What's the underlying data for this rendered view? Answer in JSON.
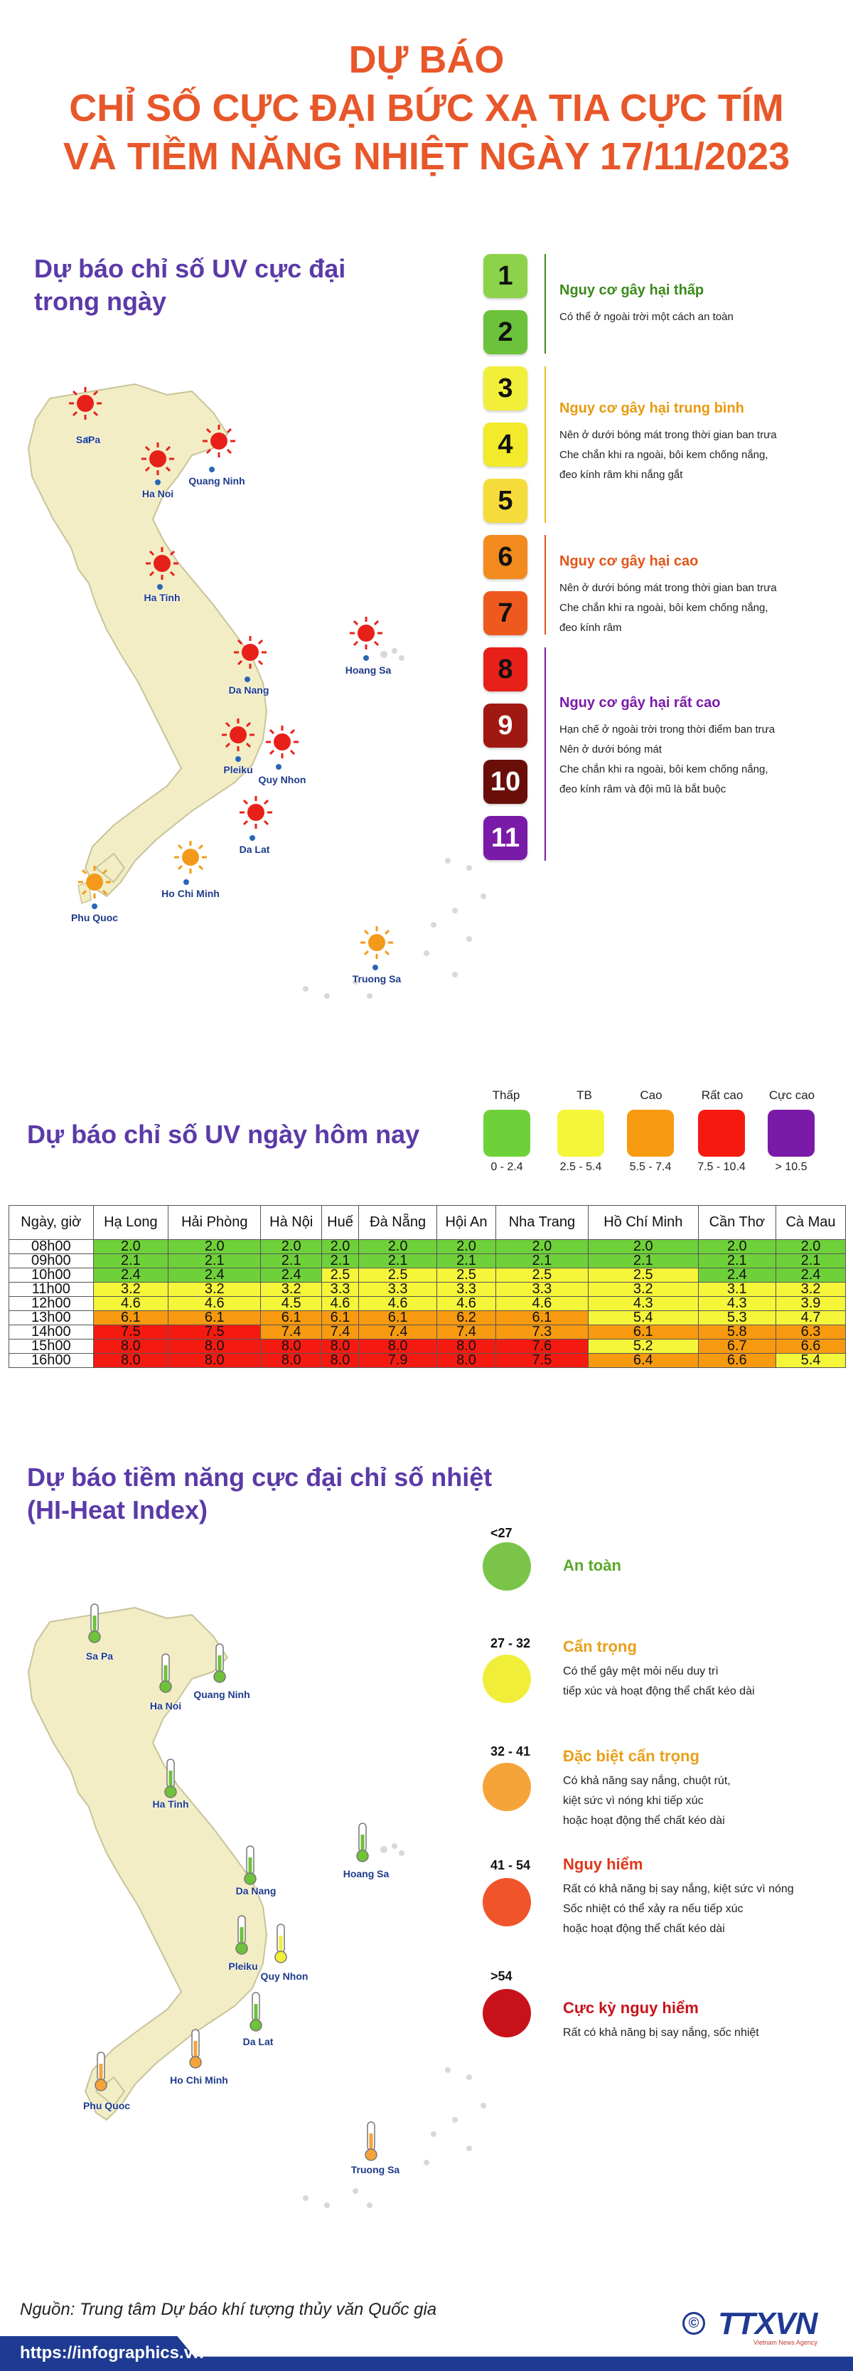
{
  "title": {
    "line1": "DỰ BÁO",
    "line2": "CHỈ SỐ CỰC ĐẠI BỨC XẠ TIA CỰC TÍM",
    "line3": "VÀ TIỀM NĂNG NHIỆT NGÀY 17/11/2023"
  },
  "uv_map": {
    "heading_line1": "Dự báo chỉ số UV cực đại",
    "heading_line2": "trong ngày",
    "cities": [
      "SaPa",
      "Ha Noi",
      "Quang Ninh",
      "Ha Tinh",
      "Hoang Sa",
      "Da Nang",
      "Pleiku",
      "Quy Nhon",
      "Da Lat",
      "Ho Chi Minh",
      "Phu Quoc",
      "Truong Sa"
    ]
  },
  "uv_scale": {
    "levels": [
      "1",
      "2",
      "3",
      "4",
      "5",
      "6",
      "7",
      "8",
      "9",
      "10",
      "11"
    ],
    "level_colors": [
      "#8cd24a",
      "#6cc23a",
      "#f2ef3a",
      "#f2ea2a",
      "#f5dc3a",
      "#f28a1e",
      "#ee5a1e",
      "#e8201a",
      "#a01812",
      "#6a0e0a",
      "#7a1aa8"
    ],
    "groups": [
      {
        "title": "Nguy cơ gây hại thấp",
        "color": "#3b8a1a",
        "lines": [
          "Có thể ở ngoài trời một cách an toàn"
        ]
      },
      {
        "title": "Nguy cơ gây hại trung bình",
        "color": "#e89a10",
        "lines": [
          "Nên ở dưới bóng mát trong thời gian ban trưa",
          "Che chắn khi ra ngoài, bôi kem chống nắng,",
          "đeo kính râm khi nắng gắt"
        ]
      },
      {
        "title": "Nguy cơ gây hại cao",
        "color": "#e0561a",
        "lines": [
          "Nên ở dưới bóng mát trong thời gian ban trưa",
          "Che chắn khi ra ngoài, bôi kem chống nắng,",
          "đeo kính râm"
        ]
      },
      {
        "title": "Nguy cơ gây hại rất cao",
        "color": "#7a1aa8",
        "lines": [
          "Hạn chế ở ngoài trời trong thời điểm ban trưa",
          "Nên ở dưới bóng mát",
          "Che chắn khi ra ngoài, bôi kem chống nắng,",
          "đeo kính râm và đội mũ là bắt buộc"
        ]
      }
    ]
  },
  "uv_today": {
    "heading": "Dự báo chỉ số UV ngày hôm nay",
    "legend": [
      {
        "label": "Thấp",
        "range": "0 - 2.4",
        "color": "#6fd13a"
      },
      {
        "label": "TB",
        "range": "2.5 - 5.4",
        "color": "#f5f53a"
      },
      {
        "label": "Cao",
        "range": "5.5 - 7.4",
        "color": "#f79a10"
      },
      {
        "label": "Rất cao",
        "range": "7.5 - 10.4",
        "color": "#f51a10"
      },
      {
        "label": "Cực cao",
        "range": "> 10.5",
        "color": "#7a1aa8"
      }
    ]
  },
  "uv_table": {
    "headers": [
      "Ngày, giờ",
      "Hạ Long",
      "Hải Phòng",
      "Hà Nội",
      "Huế",
      "Đà Nẵng",
      "Hội An",
      "Nha Trang",
      "Hồ Chí Minh",
      "Cần Thơ",
      "Cà Mau"
    ],
    "rows": [
      {
        "time": "08h00",
        "values": [
          "2.0",
          "2.0",
          "2.0",
          "2.0",
          "2.0",
          "2.0",
          "2.0",
          "2.0",
          "2.0",
          "2.0"
        ]
      },
      {
        "time": "09h00",
        "values": [
          "2.1",
          "2.1",
          "2.1",
          "2.1",
          "2.1",
          "2.1",
          "2.1",
          "2.1",
          "2.1",
          "2.1"
        ]
      },
      {
        "time": "10h00",
        "values": [
          "2.4",
          "2.4",
          "2.4",
          "2.5",
          "2.5",
          "2.5",
          "2.5",
          "2.5",
          "2.4",
          "2.4"
        ]
      },
      {
        "time": "11h00",
        "values": [
          "3.2",
          "3.2",
          "3.2",
          "3.3",
          "3.3",
          "3.3",
          "3.3",
          "3.2",
          "3.1",
          "3.2"
        ]
      },
      {
        "time": "12h00",
        "values": [
          "4.6",
          "4.6",
          "4.5",
          "4.6",
          "4.6",
          "4.6",
          "4.6",
          "4.3",
          "4.3",
          "3.9"
        ]
      },
      {
        "time": "13h00",
        "values": [
          "6.1",
          "6.1",
          "6.1",
          "6.1",
          "6.1",
          "6.2",
          "6.1",
          "5.4",
          "5.3",
          "4.7"
        ]
      },
      {
        "time": "14h00",
        "values": [
          "7.5",
          "7.5",
          "7.4",
          "7.4",
          "7.4",
          "7.4",
          "7.3",
          "6.1",
          "5.8",
          "6.3"
        ]
      },
      {
        "time": "15h00",
        "values": [
          "8.0",
          "8.0",
          "8.0",
          "8.0",
          "8.0",
          "8.0",
          "7.6",
          "5.2",
          "6.7",
          "6.6"
        ]
      },
      {
        "time": "16h00",
        "values": [
          "8.0",
          "8.0",
          "8.0",
          "8.0",
          "7.9",
          "8.0",
          "7.5",
          "6.4",
          "6.6",
          "5.4"
        ]
      }
    ]
  },
  "heat": {
    "heading_line1": "Dự báo tiềm năng cực đại chỉ số nhiệt",
    "heading_line2": "(HI-Heat Index)",
    "levels": [
      {
        "range": "<27",
        "title": "An toàn",
        "color": "#7bc44a",
        "title_color": "#5aa82a",
        "lines": []
      },
      {
        "range": "27 - 32",
        "title": "Cẩn trọng",
        "color": "#f1ee3a",
        "title_color": "#e8a01a",
        "lines": [
          "Có thể gây mệt mỏi nếu duy trì",
          "tiếp xúc và hoạt động thể chất kéo dài"
        ]
      },
      {
        "range": "32 - 41",
        "title": "Đặc biệt cẩn trọng",
        "color": "#f5a43a",
        "title_color": "#e8a01a",
        "lines": [
          "Có khả năng say nắng, chuột rút,",
          "kiệt sức vì nóng khi tiếp xúc",
          "hoặc hoạt động thể chất kéo dài"
        ]
      },
      {
        "range": "41 - 54",
        "title": "Nguy hiểm",
        "color": "#f0542a",
        "title_color": "#e0361a",
        "lines": [
          "Rất có khả năng bị say nắng, kiệt sức vì nóng",
          "Sốc nhiệt có thể xảy ra nếu tiếp xúc",
          "hoặc hoạt động thể chất kéo dài"
        ]
      },
      {
        "range": ">54",
        "title": "Cực kỳ nguy hiểm",
        "color": "#c8121a",
        "title_color": "#c8121a",
        "lines": [
          "Rất có khả năng bị say nắng, sốc nhiệt"
        ]
      }
    ],
    "cities": [
      "Sa Pa",
      "Ha Noi",
      "Quang Ninh",
      "Ha Tinh",
      "Hoang Sa",
      "Da Nang",
      "Pleiku",
      "Quy Nhon",
      "Da Lat",
      "Ho Chi Minh",
      "Phu Quoc",
      "Truong Sa"
    ]
  },
  "source": "Nguồn: Trung tâm Dự báo khí tượng thủy văn Quốc gia",
  "footer": {
    "url": "https://infographics.vn",
    "logo_copyright": "©",
    "logo_name": "TTXVN",
    "logo_sub": "Vietnam News Agency"
  }
}
